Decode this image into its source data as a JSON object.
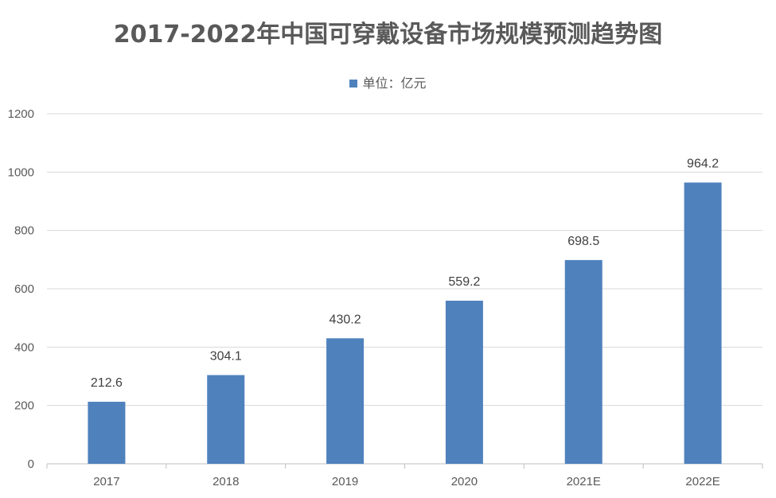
{
  "chart_data": {
    "type": "bar",
    "title": "2017-2022年中国可穿戴设备市场规模预测趋势图",
    "legend": "单位：亿元",
    "legend_position": "top",
    "categories": [
      "2017",
      "2018",
      "2019",
      "2020",
      "2021E",
      "2022E"
    ],
    "values": [
      212.6,
      304.1,
      430.2,
      559.2,
      698.5,
      964.2
    ],
    "value_labels": [
      "212.6",
      "304.1",
      "430.2",
      "559.2",
      "698.5",
      "964.2"
    ],
    "ylim": [
      0,
      1200
    ],
    "yticks": [
      "0",
      "200",
      "400",
      "600",
      "800",
      "1000",
      "1200"
    ],
    "ytick_values": [
      0,
      200,
      400,
      600,
      800,
      1000,
      1200
    ],
    "grid": true,
    "bar_color": "#4f81bd",
    "grid_color": "#d9d9d9"
  }
}
